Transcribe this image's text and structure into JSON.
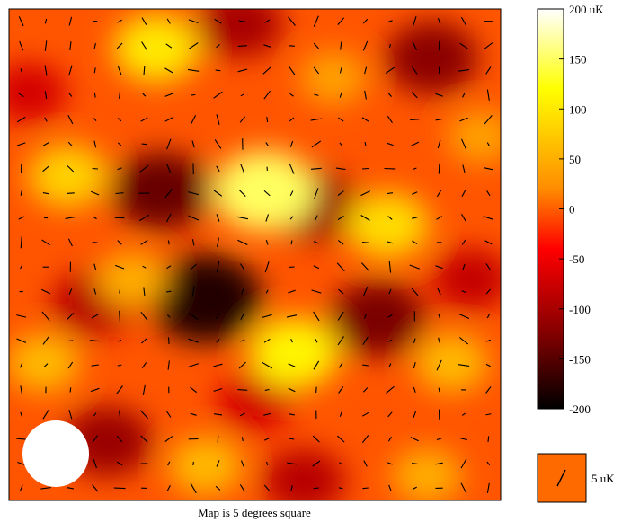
{
  "chart_data": {
    "type": "heatmap",
    "overlay": "polarization-vectors",
    "caption": "Map is 5 degrees square",
    "colorbar": {
      "ticks": [
        {
          "value": 200,
          "label": "200 uK"
        },
        {
          "value": 150,
          "label": "150"
        },
        {
          "value": 100,
          "label": "100"
        },
        {
          "value": 50,
          "label": "50"
        },
        {
          "value": 0,
          "label": "0"
        },
        {
          "value": -50,
          "label": "-50"
        },
        {
          "value": -100,
          "label": "-100"
        },
        {
          "value": -150,
          "label": "-150"
        },
        {
          "value": -200,
          "label": "-200"
        }
      ],
      "range": [
        -200,
        200
      ],
      "colors": [
        "#000000",
        "#8b0000",
        "#ff0000",
        "#ff8c00",
        "#ffff00",
        "#ffffff"
      ]
    },
    "scale_legend": {
      "label": "5 uK",
      "swatch_color": "#ff6a00"
    },
    "beam": {
      "color": "#ffffff"
    },
    "hot_spots": [
      {
        "x": 0.12,
        "y": 0.34,
        "value": 80
      },
      {
        "x": 0.3,
        "y": 0.08,
        "value": 100
      },
      {
        "x": 0.52,
        "y": 0.37,
        "value": 150
      },
      {
        "x": 0.77,
        "y": 0.44,
        "value": 90
      },
      {
        "x": 0.58,
        "y": 0.7,
        "value": 110
      },
      {
        "x": 0.25,
        "y": 0.55,
        "value": 50
      },
      {
        "x": 0.9,
        "y": 0.72,
        "value": 60
      },
      {
        "x": 0.07,
        "y": 0.72,
        "value": 60
      },
      {
        "x": 0.66,
        "y": 0.14,
        "value": 40
      },
      {
        "x": 0.4,
        "y": 0.93,
        "value": 60
      },
      {
        "x": 0.85,
        "y": 0.95,
        "value": 50
      },
      {
        "x": 0.96,
        "y": 0.26,
        "value": 40
      }
    ],
    "cold_spots": [
      {
        "x": 0.4,
        "y": 0.59,
        "value": -180
      },
      {
        "x": 0.31,
        "y": 0.37,
        "value": -140
      },
      {
        "x": 0.75,
        "y": 0.63,
        "value": -130
      },
      {
        "x": 0.62,
        "y": 0.4,
        "value": -110
      },
      {
        "x": 0.86,
        "y": 0.1,
        "value": -120
      },
      {
        "x": 0.47,
        "y": 0.03,
        "value": -100
      },
      {
        "x": 0.2,
        "y": 0.88,
        "value": -110
      },
      {
        "x": 0.6,
        "y": 0.96,
        "value": -90
      },
      {
        "x": 0.94,
        "y": 0.55,
        "value": -80
      },
      {
        "x": 0.04,
        "y": 0.17,
        "value": -70
      },
      {
        "x": 0.17,
        "y": 0.6,
        "value": -90
      },
      {
        "x": 0.5,
        "y": 0.8,
        "value": -70
      }
    ]
  }
}
